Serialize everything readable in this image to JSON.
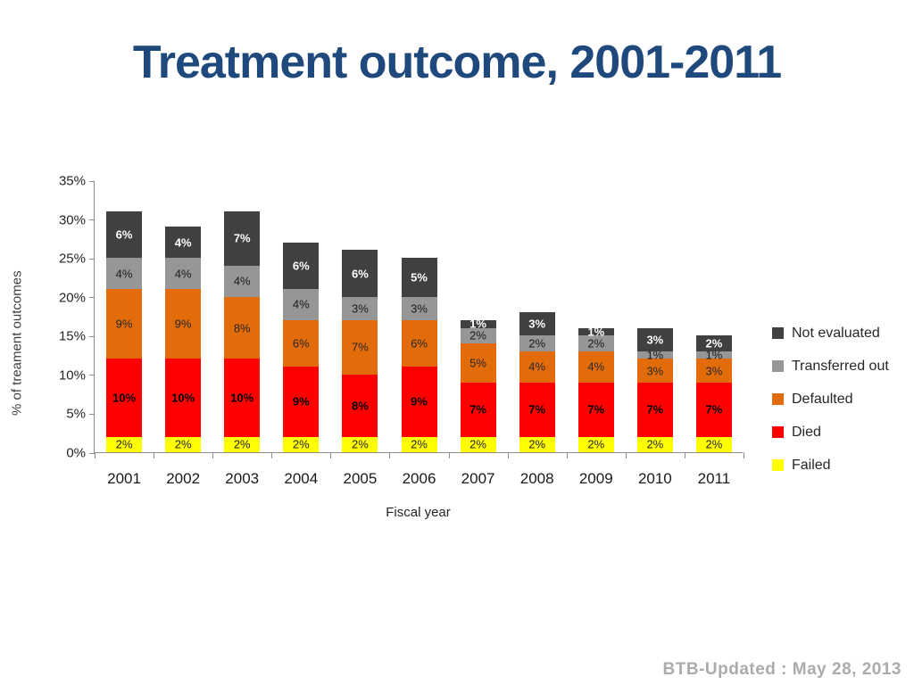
{
  "slide": {
    "title": "Treatment outcome, 2001-2011",
    "footer": "BTB-Updated : May 28, 2013"
  },
  "chart_data": {
    "type": "bar",
    "stacked": true,
    "title": "Treatment outcome, 2001-2011",
    "xlabel": "Fiscal year",
    "ylabel": "% of treament outcomes",
    "categories": [
      "2001",
      "2002",
      "2003",
      "2004",
      "2005",
      "2006",
      "2007",
      "2008",
      "2009",
      "2010",
      "2011"
    ],
    "series": [
      {
        "name": "Failed",
        "color": "#FFFF00",
        "label_color": "#262626",
        "label_bold": false,
        "values": [
          2,
          2,
          2,
          2,
          2,
          2,
          2,
          2,
          2,
          2,
          2
        ]
      },
      {
        "name": "Died",
        "color": "#FF0000",
        "label_color": "#000000",
        "label_bold": true,
        "values": [
          10,
          10,
          10,
          9,
          8,
          9,
          7,
          7,
          7,
          7,
          7
        ]
      },
      {
        "name": "Defaulted",
        "color": "#E36C0A",
        "label_color": "#262626",
        "label_bold": false,
        "values": [
          9,
          9,
          8,
          6,
          7,
          6,
          5,
          4,
          4,
          3,
          3
        ]
      },
      {
        "name": "Transferred out",
        "color": "#969696",
        "label_color": "#1a1a1a",
        "label_bold": false,
        "values": [
          4,
          4,
          4,
          4,
          3,
          3,
          2,
          2,
          2,
          1,
          1
        ]
      },
      {
        "name": "Not evaluated",
        "color": "#404040",
        "label_color": "#FFFFFF",
        "label_bold": true,
        "values": [
          6,
          4,
          7,
          6,
          6,
          5,
          1,
          3,
          1,
          3,
          2
        ]
      }
    ],
    "legend": [
      "Not evaluated",
      "Transferred out",
      "Defaulted",
      "Died",
      "Failed"
    ],
    "legend_position": "right",
    "grid": false,
    "ylim": [
      0,
      35
    ],
    "ytick_step": 5,
    "ytick_labels": [
      "0%",
      "5%",
      "10%",
      "15%",
      "20%",
      "25%",
      "30%",
      "35%"
    ],
    "segment_label_suffix": "%",
    "axis_color": "#8c8c8c",
    "title_color": "#1F497D"
  }
}
